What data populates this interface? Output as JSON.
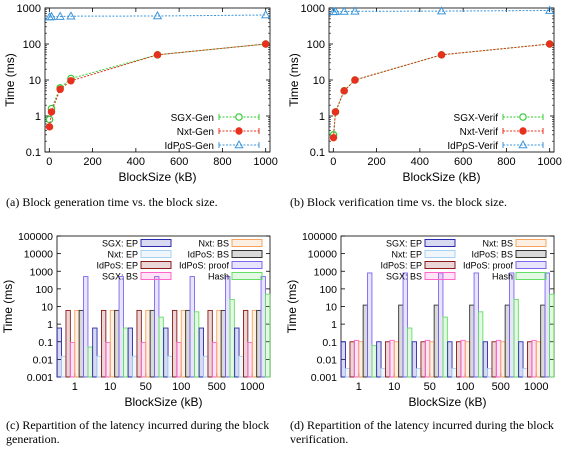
{
  "captions": {
    "a": "(a) Block generation time vs. the block size.",
    "b": "(b) Block verification time vs. the block size.",
    "c": "(c) Repartition of the latency incurred during the block generation.",
    "d": "(d) Repartition of the latency incurred during the block verification."
  },
  "chart_data": [
    {
      "type": "line",
      "title": "",
      "xlabel": "BlockSize (kB)",
      "ylabel": "Time (ms)",
      "xlim": [
        -20,
        1020
      ],
      "ylim": [
        0.1,
        1000
      ],
      "yscale": "log",
      "xticks": [
        0,
        200,
        400,
        600,
        800,
        1000
      ],
      "xticklabels": [
        "0",
        "200",
        "400",
        "600",
        "800",
        "1000"
      ],
      "yticks": [
        0.1,
        1,
        10,
        100,
        1000
      ],
      "yticklabels": [
        "0.1",
        "1",
        "10",
        "100",
        "1000"
      ],
      "legend_position": "bottom-right",
      "x": [
        1,
        10,
        50,
        100,
        500,
        1000
      ],
      "series": [
        {
          "name": "SGX-Gen",
          "marker": "open-circle",
          "color": "#33cc33",
          "values": [
            0.8,
            1.6,
            6.0,
            11.0,
            50,
            100
          ]
        },
        {
          "name": "Nxt-Gen",
          "marker": "filled-circle",
          "color": "#e8301e",
          "values": [
            0.5,
            1.3,
            5.5,
            9.5,
            50,
            100
          ]
        },
        {
          "name": "IdPoS-Gen",
          "marker": "open-triangle",
          "color": "#3c96dc",
          "values": [
            560,
            570,
            580,
            590,
            600,
            640
          ]
        }
      ]
    },
    {
      "type": "line",
      "title": "",
      "xlabel": "BlockSize (kB)",
      "ylabel": "Time (ms)",
      "xlim": [
        -20,
        1020
      ],
      "ylim": [
        0.1,
        1000
      ],
      "yscale": "log",
      "xticks": [
        0,
        200,
        400,
        600,
        800,
        1000
      ],
      "xticklabels": [
        "0",
        "200",
        "400",
        "600",
        "800",
        "1000"
      ],
      "yticks": [
        0.1,
        1,
        10,
        100,
        1000
      ],
      "yticklabels": [
        "0.1",
        "1",
        "10",
        "100",
        "1000"
      ],
      "legend_position": "bottom-right",
      "x": [
        1,
        10,
        50,
        100,
        500,
        1000
      ],
      "series": [
        {
          "name": "SGX-Verif",
          "marker": "open-circle",
          "color": "#33cc33",
          "values": [
            0.3,
            1.3,
            5.0,
            10.0,
            50,
            100
          ]
        },
        {
          "name": "Nxt-Verif",
          "marker": "filled-circle",
          "color": "#e8301e",
          "values": [
            0.25,
            1.3,
            5.0,
            10.0,
            50,
            100
          ]
        },
        {
          "name": "IdPoS-Verif",
          "marker": "open-triangle",
          "color": "#3c96dc",
          "values": [
            780,
            790,
            800,
            810,
            820,
            850
          ]
        }
      ]
    },
    {
      "type": "bar",
      "title": "",
      "xlabel": "BlockSize (kB)",
      "ylabel": "Time (ms)",
      "yscale": "log",
      "ylim": [
        0.001,
        100000
      ],
      "yticks": [
        0.001,
        0.01,
        0.1,
        1,
        10,
        100,
        1000,
        10000,
        100000
      ],
      "yticklabels": [
        "0.001",
        "0.01",
        "0.1",
        "1",
        "10",
        "100",
        "1000",
        "10000",
        "100000"
      ],
      "categories": [
        "1",
        "10",
        "50",
        "100",
        "500",
        "1000"
      ],
      "legend_position": "top",
      "series": [
        {
          "name": "SGX: EP",
          "color": "#2a2ab0",
          "values": [
            0.6,
            0.6,
            0.6,
            0.6,
            0.6,
            0.6
          ]
        },
        {
          "name": "Nxt: EP",
          "color": "#a8d0f0",
          "values": [
            0.015,
            0.015,
            0.015,
            0.015,
            0.015,
            0.015
          ]
        },
        {
          "name": "IdPoS: EP",
          "color": "#8b1a1a",
          "values": [
            6,
            6,
            6,
            6,
            6,
            6
          ]
        },
        {
          "name": "SGX: BS",
          "color": "#ff66cc",
          "values": [
            0.09,
            0.09,
            0.09,
            0.09,
            0.09,
            0.09
          ]
        },
        {
          "name": "Nxt: BS",
          "color": "#f4a460",
          "values": [
            6,
            6,
            6,
            6,
            6,
            6
          ]
        },
        {
          "name": "IdPoS: BS",
          "color": "#333333",
          "values": [
            6,
            6,
            6,
            6,
            6,
            6
          ]
        },
        {
          "name": "IdPoS: proof",
          "color": "#7b68ee",
          "values": [
            500,
            500,
            500,
            500,
            500,
            500
          ]
        },
        {
          "name": "Hash",
          "color": "#66dd66",
          "values": [
            0.05,
            0.6,
            2.5,
            5,
            25,
            50
          ]
        }
      ]
    },
    {
      "type": "bar",
      "title": "",
      "xlabel": "BlockSize (kB)",
      "ylabel": "Time (ms)",
      "yscale": "log",
      "ylim": [
        0.001,
        100000
      ],
      "yticks": [
        0.001,
        0.01,
        0.1,
        1,
        10,
        100,
        1000,
        10000,
        100000
      ],
      "yticklabels": [
        "0.001",
        "0.01",
        "0.1",
        "1",
        "10",
        "100",
        "1000",
        "10000",
        "100000"
      ],
      "categories": [
        "1",
        "10",
        "50",
        "100",
        "500",
        "1000"
      ],
      "legend_position": "top",
      "series": [
        {
          "name": "SGX: EP",
          "color": "#2a2ab0",
          "values": [
            0.1,
            0.1,
            0.1,
            0.1,
            0.1,
            0.1
          ]
        },
        {
          "name": "Nxt: EP",
          "color": "#a8d0f0",
          "values": [
            0.003,
            0.003,
            0.003,
            0.003,
            0.003,
            0.003
          ]
        },
        {
          "name": "IdPoS: EP",
          "color": "#8b1a1a",
          "values": [
            0.1,
            0.1,
            0.1,
            0.1,
            0.1,
            0.1
          ]
        },
        {
          "name": "SGX: BS",
          "color": "#ff66cc",
          "values": [
            0.12,
            0.12,
            0.12,
            0.12,
            0.12,
            0.12
          ]
        },
        {
          "name": "Nxt: BS",
          "color": "#f4a460",
          "values": [
            0.1,
            0.1,
            0.1,
            0.1,
            0.1,
            0.1
          ]
        },
        {
          "name": "IdPoS: BS",
          "color": "#333333",
          "values": [
            12,
            12,
            12,
            12,
            12,
            12
          ]
        },
        {
          "name": "IdPoS: proof",
          "color": "#7b68ee",
          "values": [
            800,
            800,
            800,
            800,
            800,
            800
          ]
        },
        {
          "name": "Hash",
          "color": "#66dd66",
          "values": [
            0.06,
            0.6,
            2.5,
            5,
            25,
            50
          ]
        }
      ]
    }
  ]
}
